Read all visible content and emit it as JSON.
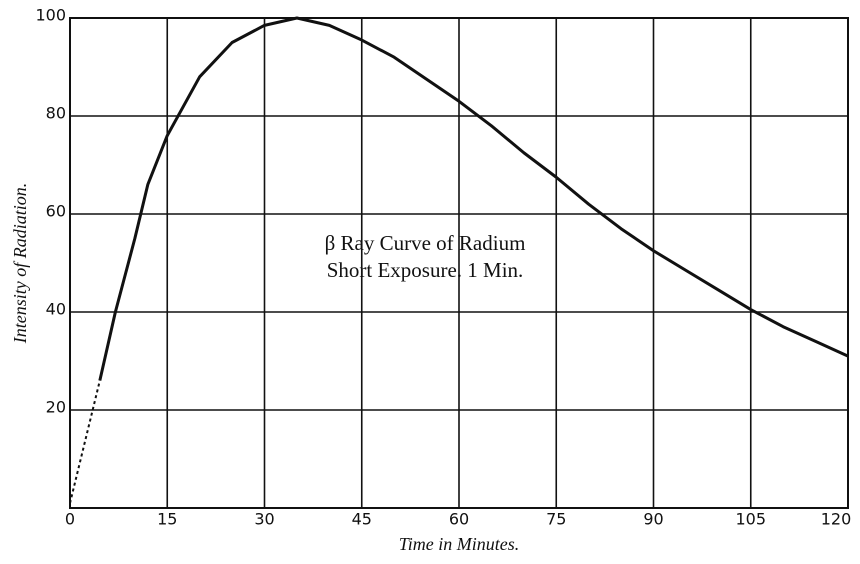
{
  "chart_data": {
    "type": "line",
    "annotation": [
      "β Ray Curve of Radium",
      "Short Exposure.  1 Min."
    ],
    "xlabel": "Time in Minutes.",
    "ylabel": "Intensity of Radiation.",
    "x": [
      0,
      4.6,
      7,
      10,
      12,
      15,
      20,
      25,
      30,
      35,
      40,
      45,
      50,
      55,
      60,
      65,
      70,
      75,
      80,
      85,
      90,
      95,
      100,
      105,
      110,
      115,
      120
    ],
    "series": [
      {
        "color": "#111111",
        "line_style": "dashed",
        "values": [
          1,
          26,
          null,
          null,
          null,
          null,
          null,
          null,
          null,
          null,
          null,
          null,
          null,
          null,
          null,
          null,
          null,
          null,
          null,
          null,
          null,
          null,
          null,
          null,
          null,
          null,
          null
        ]
      },
      {
        "color": "#111111",
        "line_style": "solid",
        "values": [
          null,
          26,
          40,
          55,
          66,
          76,
          88,
          95,
          98.5,
          100,
          98.5,
          95.5,
          92,
          87.5,
          83,
          78,
          72.5,
          67.5,
          62,
          57,
          52.5,
          48.5,
          44.5,
          40.5,
          37,
          34,
          31
        ]
      }
    ],
    "xlim": [
      0,
      120
    ],
    "xticks": [
      0,
      15,
      30,
      45,
      60,
      75,
      90,
      105,
      120
    ],
    "ylim": [
      0,
      100
    ],
    "yticks": [
      20,
      40,
      60,
      80,
      100
    ],
    "grid": true
  }
}
